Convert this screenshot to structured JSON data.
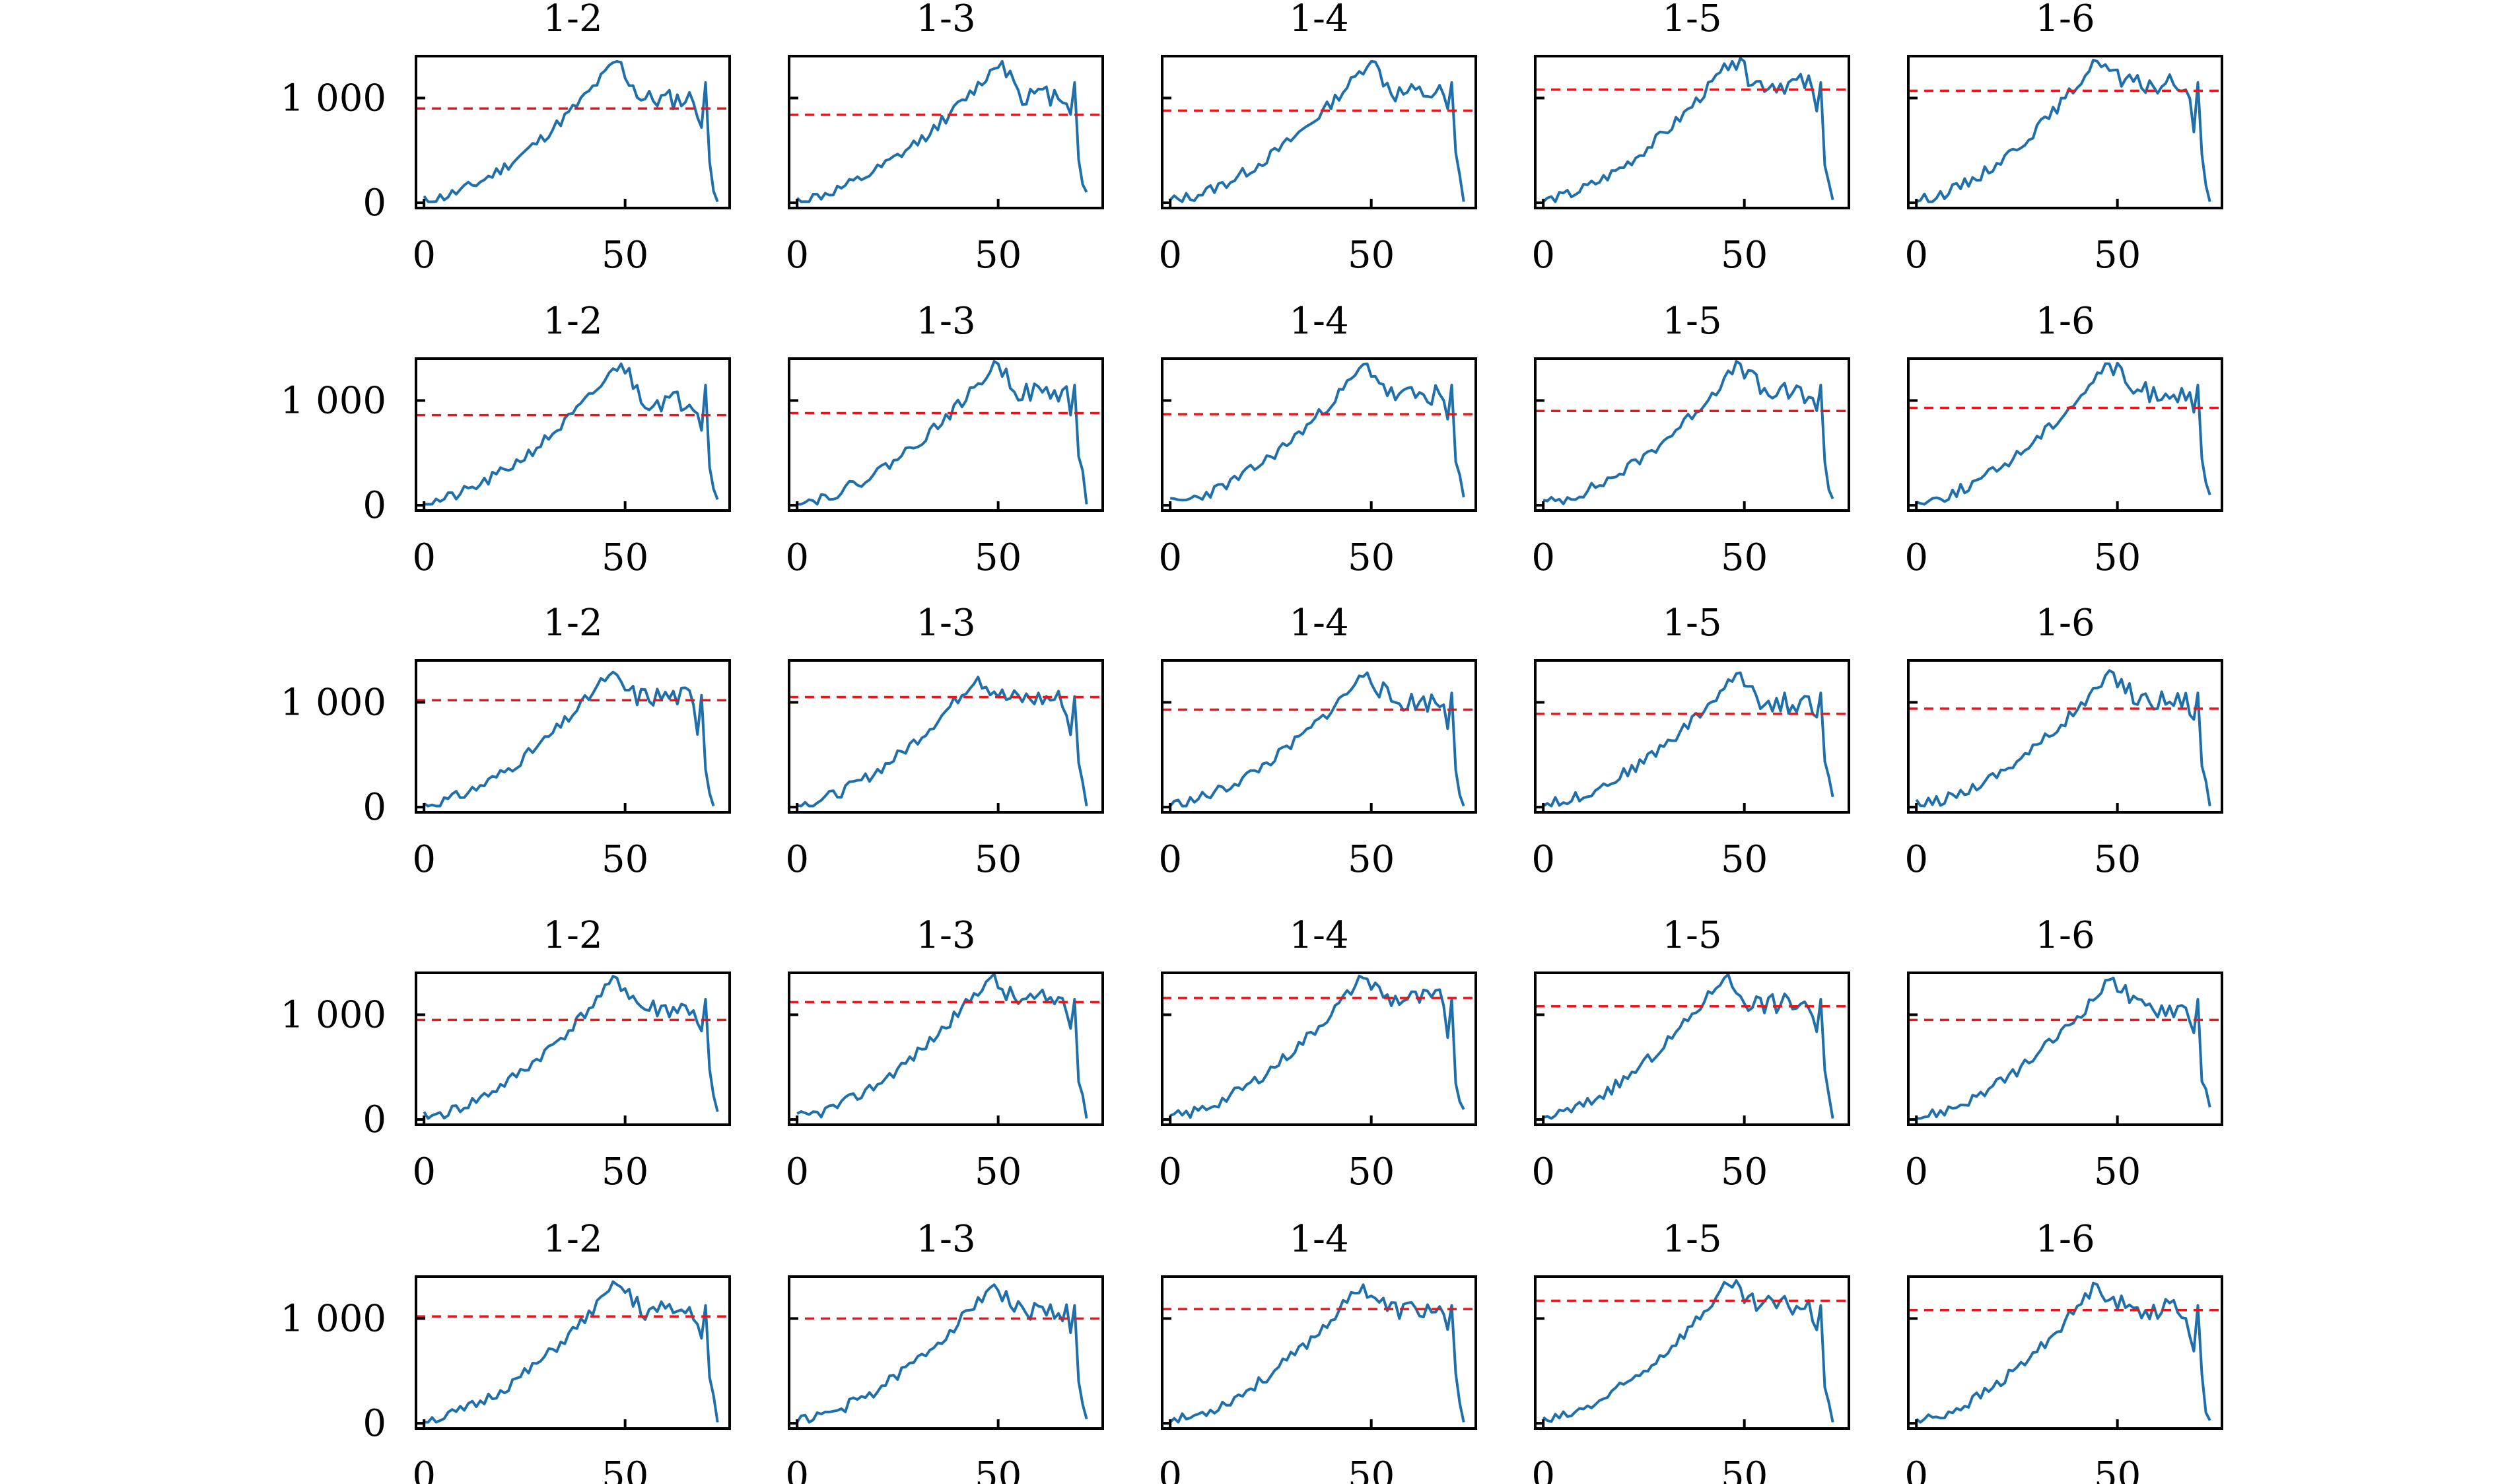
{
  "chart_data": {
    "type": "line",
    "layout": {
      "rows": 5,
      "cols": 5
    },
    "xlim": [
      -2,
      76
    ],
    "ylim": [
      -50,
      1400
    ],
    "x_ticks": [
      0,
      50
    ],
    "x_tick_labels": [
      "0",
      "50"
    ],
    "y_ticks": [
      0,
      1000
    ],
    "y_tick_labels": [
      "0",
      "1 000"
    ],
    "grid": false,
    "legend": "none",
    "colors": {
      "series": "#1f6faa",
      "reference": "#e8161b",
      "axes": "#000000"
    },
    "panels": [
      {
        "title": "1-2",
        "threshold": 900,
        "profile": {
          "rise": 48,
          "fall_end": 73,
          "plateau": 0.45,
          "amp": 1.0,
          "seed": 11
        }
      },
      {
        "title": "1-3",
        "threshold": 840,
        "profile": {
          "rise": 51,
          "fall_end": 72,
          "plateau": 0.55,
          "amp": 1.0,
          "seed": 12
        }
      },
      {
        "title": "1-4",
        "threshold": 880,
        "profile": {
          "rise": 50,
          "fall_end": 73,
          "plateau": 0.62,
          "amp": 1.0,
          "seed": 13
        }
      },
      {
        "title": "1-5",
        "threshold": 1080,
        "profile": {
          "rise": 47,
          "fall_end": 72,
          "plateau": 0.9,
          "amp": 1.0,
          "seed": 14
        }
      },
      {
        "title": "1-6",
        "threshold": 1070,
        "profile": {
          "rise": 45,
          "fall_end": 73,
          "plateau": 0.85,
          "amp": 1.0,
          "seed": 15
        }
      },
      {
        "title": "1-2",
        "threshold": 860,
        "profile": {
          "rise": 49,
          "fall_end": 73,
          "plateau": 0.48,
          "amp": 1.0,
          "seed": 21
        }
      },
      {
        "title": "1-3",
        "threshold": 880,
        "profile": {
          "rise": 50,
          "fall_end": 72,
          "plateau": 0.7,
          "amp": 1.0,
          "seed": 22
        }
      },
      {
        "title": "1-4",
        "threshold": 870,
        "profile": {
          "rise": 49,
          "fall_end": 73,
          "plateau": 0.62,
          "amp": 1.0,
          "seed": 23
        }
      },
      {
        "title": "1-5",
        "threshold": 900,
        "profile": {
          "rise": 49,
          "fall_end": 72,
          "plateau": 0.68,
          "amp": 1.0,
          "seed": 24
        }
      },
      {
        "title": "1-6",
        "threshold": 930,
        "profile": {
          "rise": 48,
          "fall_end": 73,
          "plateau": 0.72,
          "amp": 1.0,
          "seed": 25
        }
      },
      {
        "title": "1-2",
        "threshold": 1020,
        "profile": {
          "rise": 46,
          "fall_end": 72,
          "plateau": 0.9,
          "amp": 0.93,
          "seed": 31
        }
      },
      {
        "title": "1-3",
        "threshold": 1050,
        "profile": {
          "rise": 45,
          "fall_end": 72,
          "plateau": 0.85,
          "amp": 0.92,
          "seed": 32
        }
      },
      {
        "title": "1-4",
        "threshold": 930,
        "profile": {
          "rise": 49,
          "fall_end": 73,
          "plateau": 0.65,
          "amp": 0.95,
          "seed": 33
        }
      },
      {
        "title": "1-5",
        "threshold": 890,
        "profile": {
          "rise": 49,
          "fall_end": 72,
          "plateau": 0.62,
          "amp": 0.95,
          "seed": 34
        }
      },
      {
        "title": "1-6",
        "threshold": 940,
        "profile": {
          "rise": 49,
          "fall_end": 73,
          "plateau": 0.72,
          "amp": 0.95,
          "seed": 35
        }
      },
      {
        "title": "1-2",
        "threshold": 950,
        "profile": {
          "rise": 48,
          "fall_end": 73,
          "plateau": 0.65,
          "amp": 1.0,
          "seed": 41
        }
      },
      {
        "title": "1-3",
        "threshold": 1120,
        "profile": {
          "rise": 48,
          "fall_end": 72,
          "plateau": 0.9,
          "amp": 1.0,
          "seed": 42
        }
      },
      {
        "title": "1-4",
        "threshold": 1160,
        "profile": {
          "rise": 48,
          "fall_end": 73,
          "plateau": 0.92,
          "amp": 1.0,
          "seed": 43
        }
      },
      {
        "title": "1-5",
        "threshold": 1080,
        "profile": {
          "rise": 45,
          "fall_end": 72,
          "plateau": 0.8,
          "amp": 1.0,
          "seed": 44
        }
      },
      {
        "title": "1-6",
        "threshold": 950,
        "profile": {
          "rise": 49,
          "fall_end": 73,
          "plateau": 0.68,
          "amp": 1.0,
          "seed": 45
        }
      },
      {
        "title": "1-2",
        "threshold": 1020,
        "profile": {
          "rise": 48,
          "fall_end": 73,
          "plateau": 0.75,
          "amp": 0.98,
          "seed": 51
        }
      },
      {
        "title": "1-3",
        "threshold": 1000,
        "profile": {
          "rise": 49,
          "fall_end": 72,
          "plateau": 0.75,
          "amp": 0.98,
          "seed": 52
        }
      },
      {
        "title": "1-4",
        "threshold": 1090,
        "profile": {
          "rise": 48,
          "fall_end": 73,
          "plateau": 0.8,
          "amp": 0.98,
          "seed": 53
        }
      },
      {
        "title": "1-5",
        "threshold": 1170,
        "profile": {
          "rise": 46,
          "fall_end": 72,
          "plateau": 0.92,
          "amp": 0.98,
          "seed": 54
        }
      },
      {
        "title": "1-6",
        "threshold": 1080,
        "profile": {
          "rise": 45,
          "fall_end": 73,
          "plateau": 0.82,
          "amp": 0.98,
          "seed": 55
        }
      }
    ]
  }
}
